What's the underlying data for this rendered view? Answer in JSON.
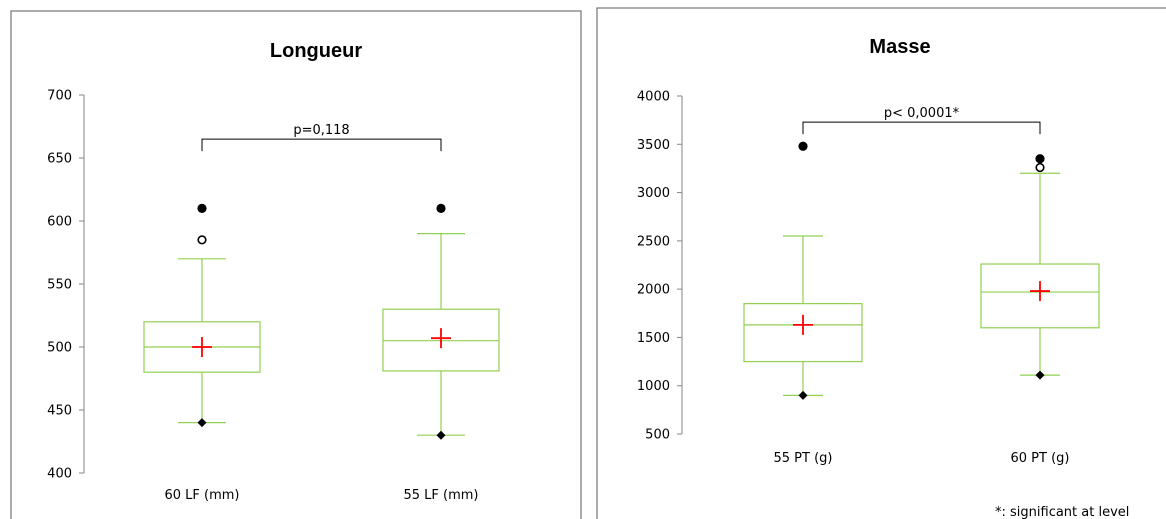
{
  "chart_data": [
    {
      "type": "box",
      "title": "Longueur",
      "ylim": [
        400,
        700
      ],
      "yticks": [
        400,
        450,
        500,
        550,
        600,
        650,
        700
      ],
      "grid": false,
      "categories": [
        "60 LF (mm)",
        "55 LF (mm)"
      ],
      "boxes": [
        {
          "min": 440,
          "q1": 480,
          "median": 500,
          "q3": 520,
          "max": 570,
          "mean": 500,
          "outliers_filled": [
            610
          ],
          "outliers_open": [
            585
          ]
        },
        {
          "min": 430,
          "q1": 481,
          "median": 505,
          "q3": 530,
          "max": 590,
          "mean": 507,
          "outliers_filled": [
            610
          ],
          "outliers_open": []
        }
      ],
      "annotation": {
        "text": "p=0,118",
        "y": 665
      }
    },
    {
      "type": "box",
      "title": "Masse",
      "ylim": [
        500,
        4000
      ],
      "yticks": [
        500,
        1000,
        1500,
        2000,
        2500,
        3000,
        3500,
        4000
      ],
      "grid": false,
      "categories": [
        "55 PT (g)",
        "60 PT (g)"
      ],
      "boxes": [
        {
          "min": 900,
          "q1": 1250,
          "median": 1630,
          "q3": 1850,
          "max": 2550,
          "mean": 1630,
          "outliers_filled": [
            3480
          ],
          "outliers_open": []
        },
        {
          "min": 1110,
          "q1": 1600,
          "median": 1970,
          "q3": 2260,
          "max": 3200,
          "mean": 1980,
          "outliers_filled": [
            3350
          ],
          "outliers_open": [
            3260
          ]
        }
      ],
      "annotation": {
        "text": "p< 0,0001*",
        "y": 3730
      },
      "footnote": "*: significant at level"
    }
  ],
  "colors": {
    "box": "#92d050",
    "mean": "#ff0000",
    "marker": "#000000",
    "frame": "#808080"
  }
}
